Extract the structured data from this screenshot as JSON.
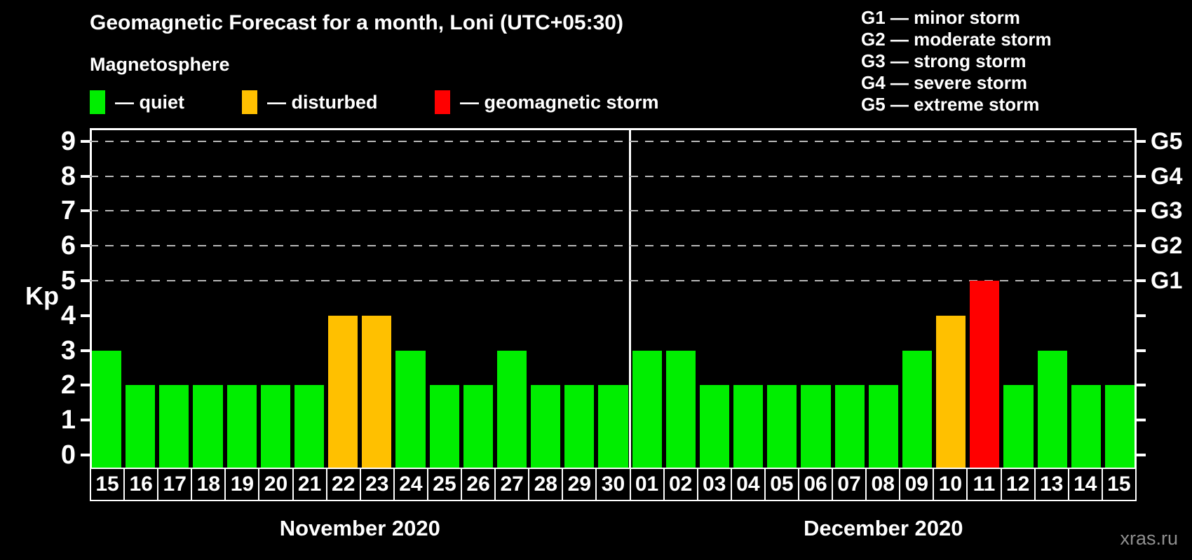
{
  "title": "Geomagnetic Forecast for a month, Loni (UTC+05:30)",
  "subtitle": "Magnetosphere",
  "legend": [
    {
      "key": "quiet",
      "label": "— quiet",
      "color": "#00ee00"
    },
    {
      "key": "disturbed",
      "label": "— disturbed",
      "color": "#ffc000"
    },
    {
      "key": "storm",
      "label": "— geomagnetic storm",
      "color": "#ff0000"
    }
  ],
  "g_scale_legend": [
    "G1 — minor storm",
    "G2 — moderate storm",
    "G3 — strong storm",
    "G4 — severe storm",
    "G5 — extreme storm"
  ],
  "watermark": "xras.ru",
  "chart_data": {
    "type": "bar",
    "ylabel": "Kp",
    "ylim": [
      0,
      9
    ],
    "y_ticks": [
      0,
      1,
      2,
      3,
      4,
      5,
      6,
      7,
      8,
      9
    ],
    "gridlines_at": [
      5,
      6,
      7,
      8,
      9
    ],
    "grid": "dashed horizontal at Kp 5-9 only",
    "right_axis_labels": [
      {
        "label": "G1",
        "kp": 5
      },
      {
        "label": "G2",
        "kp": 6
      },
      {
        "label": "G3",
        "kp": 7
      },
      {
        "label": "G4",
        "kp": 8
      },
      {
        "label": "G5",
        "kp": 9
      }
    ],
    "months": [
      {
        "label": "November 2020",
        "days": 16
      },
      {
        "label": "December 2020",
        "days": 15
      }
    ],
    "categories": [
      "15",
      "16",
      "17",
      "18",
      "19",
      "20",
      "21",
      "22",
      "23",
      "24",
      "25",
      "26",
      "27",
      "28",
      "29",
      "30",
      "01",
      "02",
      "03",
      "04",
      "05",
      "06",
      "07",
      "08",
      "09",
      "10",
      "11",
      "12",
      "13",
      "14",
      "15"
    ],
    "values": [
      3,
      2,
      2,
      2,
      2,
      2,
      2,
      4,
      4,
      3,
      2,
      2,
      3,
      2,
      2,
      2,
      3,
      3,
      2,
      2,
      2,
      2,
      2,
      2,
      3,
      4,
      5,
      2,
      3,
      2,
      2
    ],
    "statuses": [
      "quiet",
      "quiet",
      "quiet",
      "quiet",
      "quiet",
      "quiet",
      "quiet",
      "disturbed",
      "disturbed",
      "quiet",
      "quiet",
      "quiet",
      "quiet",
      "quiet",
      "quiet",
      "quiet",
      "quiet",
      "quiet",
      "quiet",
      "quiet",
      "quiet",
      "quiet",
      "quiet",
      "quiet",
      "quiet",
      "disturbed",
      "storm",
      "quiet",
      "quiet",
      "quiet",
      "quiet"
    ],
    "colors": {
      "quiet": "#00ee00",
      "disturbed": "#ffc000",
      "storm": "#ff0000"
    },
    "legend_position": "top-left (status colors) and top-right (G scale)"
  }
}
